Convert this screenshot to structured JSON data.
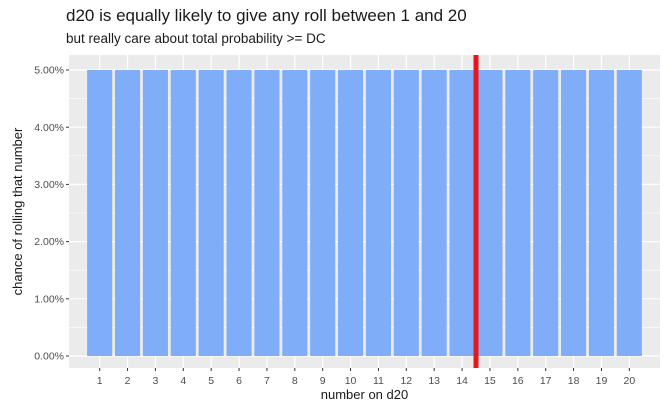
{
  "chart_data": {
    "type": "bar",
    "title": "d20 is equally likely to give any roll between 1 and 20",
    "subtitle": "but really care about total probability >= DC",
    "xlabel": "number on d20",
    "ylabel": "chance of rolling that number",
    "categories": [
      "1",
      "2",
      "3",
      "4",
      "5",
      "6",
      "7",
      "8",
      "9",
      "10",
      "11",
      "12",
      "13",
      "14",
      "15",
      "16",
      "17",
      "18",
      "19",
      "20"
    ],
    "values": [
      0.05,
      0.05,
      0.05,
      0.05,
      0.05,
      0.05,
      0.05,
      0.05,
      0.05,
      0.05,
      0.05,
      0.05,
      0.05,
      0.05,
      0.05,
      0.05,
      0.05,
      0.05,
      0.05,
      0.05
    ],
    "ylim": [
      0,
      0.05
    ],
    "yticks": [
      0,
      0.01,
      0.02,
      0.03,
      0.04,
      0.05
    ],
    "ytick_labels": [
      "0.00%",
      "1.00%",
      "2.00%",
      "3.00%",
      "4.00%",
      "5.00%"
    ],
    "vline_x": 14.5,
    "grid": true,
    "colors": {
      "bar": "#80adf7",
      "vline": "#e8141e",
      "panel": "#ebebeb",
      "grid": "#ffffff"
    }
  }
}
